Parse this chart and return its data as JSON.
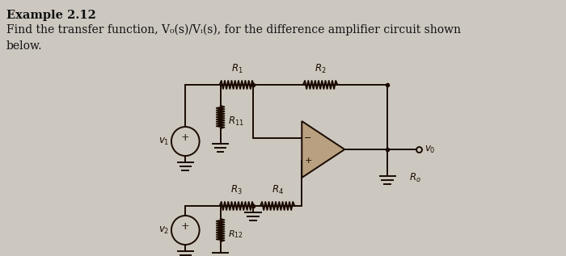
{
  "title_bold": "Example 2.12",
  "text_line2": "Find the transfer function, V₀(s)/Vᵢ(s), for the difference amplifier circuit shown",
  "text_line3": "below.",
  "bg_color": "#ccc8c0",
  "text_color": "#111111",
  "wire_color": "#1a0a00",
  "title_fontsize": 10.5,
  "body_fontsize": 10,
  "label_fontsize": 8.5
}
